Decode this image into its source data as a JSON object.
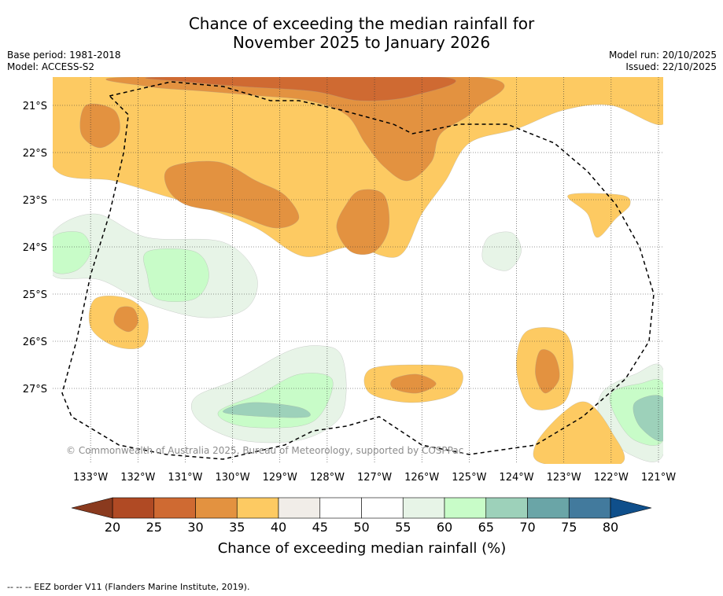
{
  "header": {
    "title_line1": "Chance of exceeding the median rainfall for",
    "title_line2": "November 2025 to January 2026",
    "base_period": "Base period: 1981-2018",
    "model": "Model: ACCESS-S2",
    "model_run": "Model run: 20/10/2025",
    "issued": "Issued: 22/10/2025"
  },
  "chart_data": {
    "type": "heatmap",
    "title": "Chance of exceeding the median rainfall for November 2025 to January 2026",
    "x_ticks": [
      "133°W",
      "132°W",
      "131°W",
      "130°W",
      "129°W",
      "128°W",
      "127°W",
      "126°W",
      "125°W",
      "124°W",
      "123°W",
      "122°W",
      "121°W"
    ],
    "x_values": [
      -133,
      -132,
      -131,
      -130,
      -129,
      -128,
      -127,
      -126,
      -125,
      -124,
      -123,
      -122,
      -121
    ],
    "y_ticks": [
      "21°S",
      "22°S",
      "23°S",
      "24°S",
      "25°S",
      "26°S",
      "27°S"
    ],
    "y_values": [
      -21,
      -22,
      -23,
      -24,
      -25,
      -26,
      -27
    ],
    "xlim": [
      -133.8,
      -120.9
    ],
    "ylim": [
      -28.6,
      -20.4
    ],
    "grid": true,
    "colorbar": {
      "label": "Chance of exceeding median rainfall (%)",
      "ticks": [
        "20",
        "25",
        "30",
        "35",
        "40",
        "45",
        "50",
        "55",
        "60",
        "65",
        "70",
        "75",
        "80"
      ],
      "bins": [
        {
          "min": 0,
          "max": 20,
          "color": "#8a3a1e"
        },
        {
          "min": 20,
          "max": 25,
          "color": "#b04a24"
        },
        {
          "min": 25,
          "max": 30,
          "color": "#cf6a32"
        },
        {
          "min": 30,
          "max": 35,
          "color": "#e39240"
        },
        {
          "min": 35,
          "max": 40,
          "color": "#fdca62"
        },
        {
          "min": 40,
          "max": 45,
          "color": "#f1ede8"
        },
        {
          "min": 45,
          "max": 50,
          "color": "#ffffff"
        },
        {
          "min": 50,
          "max": 55,
          "color": "#ffffff"
        },
        {
          "min": 55,
          "max": 60,
          "color": "#e7f4e7"
        },
        {
          "min": 60,
          "max": 65,
          "color": "#c8fcc8"
        },
        {
          "min": 65,
          "max": 70,
          "color": "#9dd1ba"
        },
        {
          "min": 70,
          "max": 75,
          "color": "#6aa5a7"
        },
        {
          "min": 75,
          "max": 80,
          "color": "#427a9d"
        },
        {
          "min": 80,
          "max": 100,
          "color": "#0f4f8b"
        }
      ]
    },
    "regions": [
      {
        "name": "north-dry-band",
        "percent": 37,
        "points": [
          [
            -133.8,
            -20.4
          ],
          [
            -120.9,
            -20.4
          ],
          [
            -120.9,
            -21.4
          ],
          [
            -122,
            -21
          ],
          [
            -123,
            -21.1
          ],
          [
            -124,
            -21.5
          ],
          [
            -125,
            -21.8
          ],
          [
            -125.5,
            -22.6
          ],
          [
            -126,
            -23.3
          ],
          [
            -126.5,
            -24.2
          ],
          [
            -127.5,
            -24
          ],
          [
            -128.5,
            -24.2
          ],
          [
            -129.5,
            -23.6
          ],
          [
            -130.5,
            -23.2
          ],
          [
            -131.5,
            -22.9
          ],
          [
            -132.5,
            -22.6
          ],
          [
            -133.8,
            -22.3
          ]
        ]
      },
      {
        "name": "north-drier-core",
        "percent": 32,
        "points": [
          [
            -132.2,
            -20.4
          ],
          [
            -124.8,
            -20.4
          ],
          [
            -124.9,
            -21.1
          ],
          [
            -125.6,
            -21.6
          ],
          [
            -125.8,
            -22.2
          ],
          [
            -126.3,
            -22.6
          ],
          [
            -126.8,
            -22.3
          ],
          [
            -127.2,
            -21.8
          ],
          [
            -127.6,
            -21.2
          ],
          [
            -128.4,
            -20.9
          ],
          [
            -129.4,
            -20.8
          ],
          [
            -130.6,
            -20.7
          ],
          [
            -131.8,
            -20.6
          ]
        ]
      },
      {
        "name": "north-driest-core",
        "percent": 27,
        "points": [
          [
            -131.5,
            -20.4
          ],
          [
            -125.6,
            -20.4
          ],
          [
            -126.2,
            -20.8
          ],
          [
            -127.3,
            -20.9
          ],
          [
            -128.3,
            -20.7
          ],
          [
            -129.8,
            -20.6
          ],
          [
            -131,
            -20.5
          ]
        ]
      },
      {
        "name": "mid-drier-patch",
        "percent": 32,
        "points": [
          [
            -131.3,
            -22.3
          ],
          [
            -130.3,
            -22.2
          ],
          [
            -129.5,
            -22.6
          ],
          [
            -128.9,
            -22.9
          ],
          [
            -128.6,
            -23.4
          ],
          [
            -129.1,
            -23.6
          ],
          [
            -130,
            -23.3
          ],
          [
            -131,
            -23.1
          ],
          [
            -131.4,
            -22.7
          ]
        ]
      },
      {
        "name": "centre-drier-patch",
        "percent": 32,
        "points": [
          [
            -127.3,
            -22.8
          ],
          [
            -126.8,
            -22.9
          ],
          [
            -126.7,
            -23.6
          ],
          [
            -127,
            -24.1
          ],
          [
            -127.5,
            -24.1
          ],
          [
            -127.8,
            -23.6
          ],
          [
            -127.6,
            -23.1
          ]
        ]
      },
      {
        "name": "west-drier-blob",
        "percent": 32,
        "points": [
          [
            -133.1,
            -21
          ],
          [
            -132.5,
            -21.1
          ],
          [
            -132.4,
            -21.6
          ],
          [
            -132.8,
            -21.9
          ],
          [
            -133.2,
            -21.6
          ]
        ]
      },
      {
        "name": "east-wet-patch",
        "percent": 57,
        "points": [
          [
            -124.6,
            -23.8
          ],
          [
            -124.1,
            -23.7
          ],
          [
            -123.9,
            -24.1
          ],
          [
            -124.2,
            -24.5
          ],
          [
            -124.7,
            -24.3
          ]
        ]
      },
      {
        "name": "west-wet-zone",
        "percent": 57,
        "points": [
          [
            -133.8,
            -23.7
          ],
          [
            -132.9,
            -23.3
          ],
          [
            -131.8,
            -23.8
          ],
          [
            -130.2,
            -23.9
          ],
          [
            -129.5,
            -24.6
          ],
          [
            -129.7,
            -25.3
          ],
          [
            -130.6,
            -25.5
          ],
          [
            -131.8,
            -25.2
          ],
          [
            -132.8,
            -24.7
          ],
          [
            -133.8,
            -24.6
          ]
        ]
      },
      {
        "name": "west-wetter-zone",
        "percent": 62,
        "points": [
          [
            -131.8,
            -24.1
          ],
          [
            -130.8,
            -24.1
          ],
          [
            -130.5,
            -24.6
          ],
          [
            -130.8,
            -25.1
          ],
          [
            -131.6,
            -25.1
          ],
          [
            -131.8,
            -24.6
          ]
        ]
      },
      {
        "name": "far-west-wetter",
        "percent": 62,
        "points": [
          [
            -133.8,
            -23.8
          ],
          [
            -133.2,
            -23.7
          ],
          [
            -133,
            -24.1
          ],
          [
            -133.3,
            -24.5
          ],
          [
            -133.8,
            -24.5
          ]
        ]
      },
      {
        "name": "south-wet-zone",
        "percent": 57,
        "points": [
          [
            -130.8,
            -27.2
          ],
          [
            -129.9,
            -26.8
          ],
          [
            -128.8,
            -26.2
          ],
          [
            -128.1,
            -26.1
          ],
          [
            -127.7,
            -26.3
          ],
          [
            -127.6,
            -27.1
          ],
          [
            -127.8,
            -27.7
          ],
          [
            -128.6,
            -28.1
          ],
          [
            -129.8,
            -28.1
          ],
          [
            -130.7,
            -27.7
          ]
        ]
      },
      {
        "name": "south-wetter-zone",
        "percent": 62,
        "points": [
          [
            -130.3,
            -27.5
          ],
          [
            -129.4,
            -27.1
          ],
          [
            -128.6,
            -26.7
          ],
          [
            -127.9,
            -26.8
          ],
          [
            -128.1,
            -27.5
          ],
          [
            -128.6,
            -27.8
          ],
          [
            -129.8,
            -27.8
          ]
        ]
      },
      {
        "name": "south-wettest-zone",
        "percent": 67,
        "points": [
          [
            -130.2,
            -27.5
          ],
          [
            -129.6,
            -27.3
          ],
          [
            -128.6,
            -27.4
          ],
          [
            -128.4,
            -27.6
          ],
          [
            -129.3,
            -27.6
          ]
        ]
      },
      {
        "name": "southeast-wet-zone",
        "percent": 57,
        "points": [
          [
            -122.2,
            -27.1
          ],
          [
            -121.5,
            -26.7
          ],
          [
            -120.9,
            -26.6
          ],
          [
            -120.9,
            -28.4
          ],
          [
            -121.6,
            -28.4
          ],
          [
            -122.2,
            -27.8
          ]
        ]
      },
      {
        "name": "southeast-wetter-zone",
        "percent": 62,
        "points": [
          [
            -122,
            -27.1
          ],
          [
            -121.4,
            -26.9
          ],
          [
            -120.9,
            -26.9
          ],
          [
            -120.9,
            -28.1
          ],
          [
            -121.5,
            -28.1
          ],
          [
            -121.9,
            -27.6
          ]
        ]
      },
      {
        "name": "southeast-wettest-zone",
        "percent": 67,
        "points": [
          [
            -121.5,
            -27.3
          ],
          [
            -120.9,
            -27.2
          ],
          [
            -120.9,
            -28.1
          ],
          [
            -121.4,
            -27.8
          ]
        ]
      },
      {
        "name": "east-dry-tongue",
        "percent": 37,
        "points": [
          [
            -122.9,
            -22.9
          ],
          [
            -121.8,
            -22.9
          ],
          [
            -121.6,
            -23.1
          ],
          [
            -121.9,
            -23.4
          ],
          [
            -122.3,
            -23.8
          ],
          [
            -122.5,
            -23.3
          ]
        ]
      },
      {
        "name": "west-dry-blob",
        "percent": 37,
        "points": [
          [
            -132.9,
            -25.1
          ],
          [
            -132.2,
            -25.1
          ],
          [
            -131.8,
            -25.5
          ],
          [
            -131.9,
            -26.1
          ],
          [
            -132.5,
            -26.1
          ],
          [
            -133,
            -25.7
          ]
        ]
      },
      {
        "name": "west-drier-core",
        "percent": 32,
        "points": [
          [
            -132.4,
            -25.3
          ],
          [
            -132.1,
            -25.3
          ],
          [
            -132,
            -25.6
          ],
          [
            -132.2,
            -25.8
          ],
          [
            -132.5,
            -25.6
          ]
        ]
      },
      {
        "name": "east-dry-blob",
        "percent": 37,
        "points": [
          [
            -123.8,
            -25.8
          ],
          [
            -123,
            -25.8
          ],
          [
            -122.8,
            -26.5
          ],
          [
            -123,
            -27.3
          ],
          [
            -123.7,
            -27.4
          ],
          [
            -124,
            -26.6
          ]
        ]
      },
      {
        "name": "east-drier-core",
        "percent": 32,
        "points": [
          [
            -123.5,
            -26.2
          ],
          [
            -123.2,
            -26.3
          ],
          [
            -123.1,
            -26.8
          ],
          [
            -123.4,
            -27.1
          ],
          [
            -123.6,
            -26.7
          ]
        ]
      },
      {
        "name": "south-dry-blob",
        "percent": 37,
        "points": [
          [
            -127.1,
            -26.6
          ],
          [
            -126.1,
            -26.5
          ],
          [
            -125.2,
            -26.6
          ],
          [
            -125.3,
            -27.1
          ],
          [
            -126.2,
            -27.3
          ],
          [
            -127.1,
            -27.1
          ]
        ]
      },
      {
        "name": "south-drier-core",
        "percent": 32,
        "points": [
          [
            -126.6,
            -26.8
          ],
          [
            -126.1,
            -26.7
          ],
          [
            -125.7,
            -26.9
          ],
          [
            -126.1,
            -27.1
          ],
          [
            -126.6,
            -27
          ]
        ]
      },
      {
        "name": "southeast-dry-strip",
        "percent": 37,
        "points": [
          [
            -123,
            -27.5
          ],
          [
            -122.5,
            -27.3
          ],
          [
            -122,
            -27.9
          ],
          [
            -121.8,
            -28.6
          ],
          [
            -123.4,
            -28.6
          ],
          [
            -123.6,
            -28.2
          ]
        ]
      }
    ],
    "eez_border": [
      [
        -132.6,
        -20.8
      ],
      [
        -131.3,
        -20.5
      ],
      [
        -130.2,
        -20.6
      ],
      [
        -129.2,
        -20.9
      ],
      [
        -128.6,
        -20.9
      ],
      [
        -127.7,
        -21.1
      ],
      [
        -126.6,
        -21.4
      ],
      [
        -126.2,
        -21.6
      ],
      [
        -125.2,
        -21.4
      ],
      [
        -124.2,
        -21.4
      ],
      [
        -123.2,
        -21.8
      ],
      [
        -122.5,
        -22.4
      ],
      [
        -121.9,
        -23.1
      ],
      [
        -121.4,
        -24
      ],
      [
        -121.1,
        -25
      ],
      [
        -121.2,
        -26
      ],
      [
        -121.7,
        -26.8
      ],
      [
        -122.6,
        -27.6
      ],
      [
        -123.6,
        -28.2
      ],
      [
        -125,
        -28.4
      ],
      [
        -126,
        -28.2
      ],
      [
        -126.9,
        -27.6
      ],
      [
        -127.6,
        -27.8
      ],
      [
        -128.3,
        -27.9
      ],
      [
        -128.9,
        -28.2
      ],
      [
        -130.2,
        -28.5
      ],
      [
        -131.4,
        -28.4
      ],
      [
        -132.4,
        -28.2
      ],
      [
        -133.4,
        -27.6
      ],
      [
        -133.6,
        -27.1
      ],
      [
        -133.3,
        -26
      ],
      [
        -133,
        -24.6
      ],
      [
        -132.6,
        -23.3
      ],
      [
        -132.3,
        -22
      ],
      [
        -132.2,
        -21.2
      ]
    ]
  },
  "watermark": "© Commonwealth of Australia 2025, Bureau of Meteorology, supported by COSPPac",
  "footer": "--  --  -- EEZ border V11 (Flanders Marine Institute, 2019)."
}
